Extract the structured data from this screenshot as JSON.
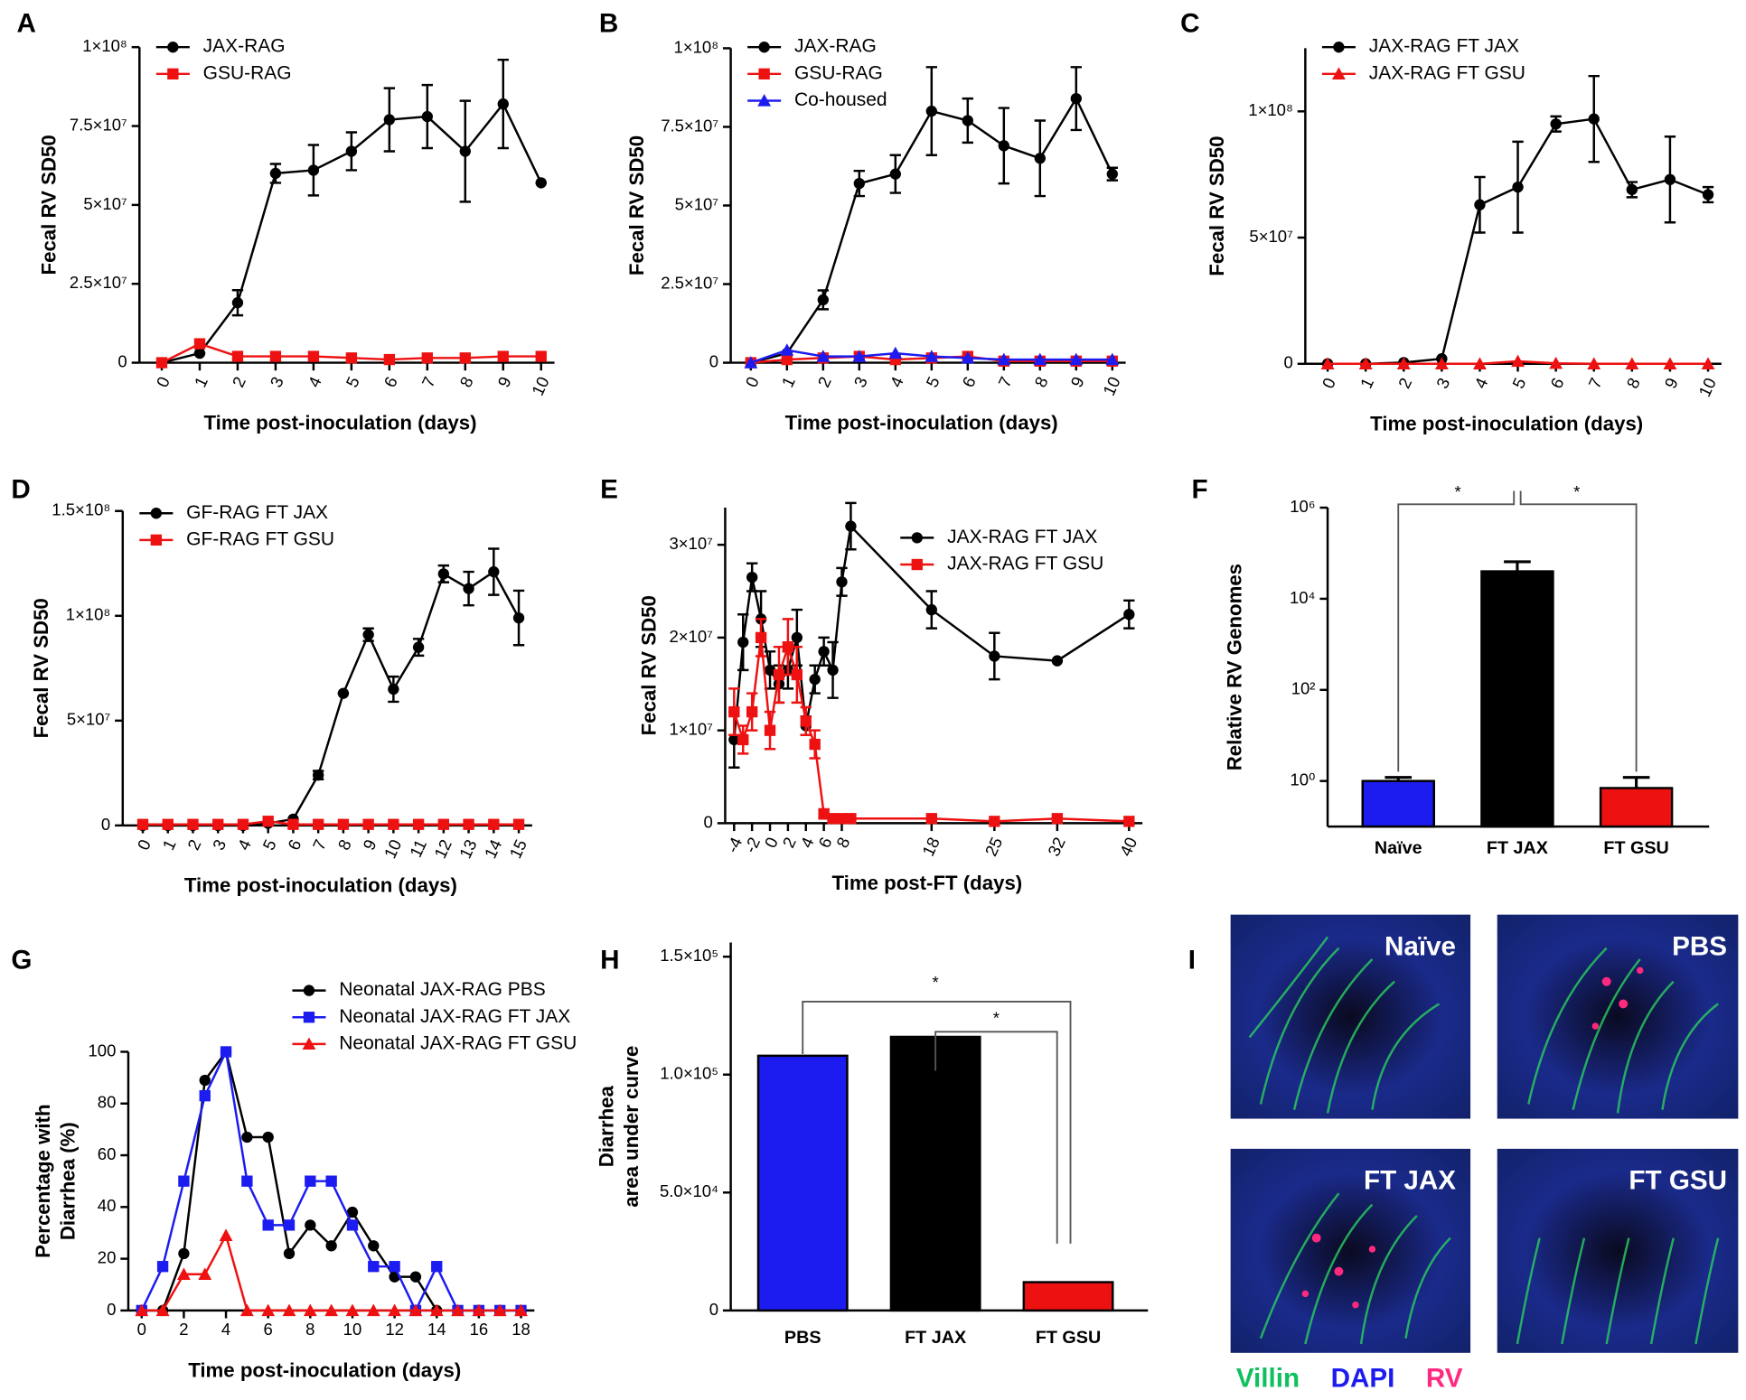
{
  "chart_data": [
    {
      "type": "line",
      "panel": "A",
      "ylabel": [
        "Fecal RV SD50"
      ],
      "xlabel": "Time post-inoculation (days)",
      "legend": "upper left",
      "x": [
        0,
        1,
        2,
        3,
        4,
        5,
        6,
        7,
        8,
        9,
        10
      ],
      "xlim": [
        0,
        10
      ],
      "xticks": [
        0,
        1,
        2,
        3,
        4,
        5,
        6,
        7,
        8,
        9,
        10
      ],
      "ylim": [
        0,
        100000000.0
      ],
      "yticks": [
        0,
        {
          "value": 25000000.0,
          "label": "2.5×10⁷"
        },
        {
          "value": 50000000.0,
          "label": "5×10⁷"
        },
        {
          "value": 75000000.0,
          "label": "7.5×10⁷"
        },
        {
          "value": 100000000.0,
          "label": "1×10⁸"
        }
      ],
      "series": [
        {
          "name": "JAX-RAG",
          "color": "#000000",
          "marker": "circle",
          "values": [
            0,
            3000000.0,
            19000000.0,
            60000000.0,
            61000000.0,
            67000000.0,
            77000000.0,
            78000000.0,
            67000000.0,
            82000000.0,
            57000000.0
          ],
          "errors": [
            0,
            0,
            4000000.0,
            3000000.0,
            8000000.0,
            6000000.0,
            10000000.0,
            10000000.0,
            16000000.0,
            14000000.0,
            0
          ]
        },
        {
          "name": "GSU-RAG",
          "color": "#ee1111",
          "marker": "square",
          "values": [
            0,
            6000000.0,
            2000000.0,
            2000000.0,
            2000000.0,
            1500000.0,
            1000000.0,
            1500000.0,
            1500000.0,
            2000000.0,
            2000000.0
          ]
        }
      ]
    },
    {
      "type": "line",
      "panel": "B",
      "ylabel": [
        "Fecal RV SD50"
      ],
      "xlabel": "Time post-inoculation (days)",
      "legend": "upper left",
      "x": [
        0,
        1,
        2,
        3,
        4,
        5,
        6,
        7,
        8,
        9,
        10
      ],
      "xlim": [
        0,
        10
      ],
      "xticks": [
        0,
        1,
        2,
        3,
        4,
        5,
        6,
        7,
        8,
        9,
        10
      ],
      "ylim": [
        0,
        100000000.0
      ],
      "yticks": [
        0,
        {
          "value": 25000000.0,
          "label": "2.5×10⁷"
        },
        {
          "value": 50000000.0,
          "label": "5×10⁷"
        },
        {
          "value": 75000000.0,
          "label": "7.5×10⁷"
        },
        {
          "value": 100000000.0,
          "label": "1×10⁸"
        }
      ],
      "series": [
        {
          "name": "JAX-RAG",
          "color": "#000000",
          "marker": "circle",
          "values": [
            0,
            3000000.0,
            20000000.0,
            57000000.0,
            60000000.0,
            80000000.0,
            77000000.0,
            69000000.0,
            65000000.0,
            84000000.0,
            60000000.0
          ],
          "errors": [
            0,
            0,
            3000000.0,
            4000000.0,
            6000000.0,
            14000000.0,
            7000000.0,
            12000000.0,
            12000000.0,
            10000000.0,
            2000000.0
          ]
        },
        {
          "name": "GSU-RAG",
          "color": "#ee1111",
          "marker": "square",
          "values": [
            0,
            1000000.0,
            1500000.0,
            2000000.0,
            1000000.0,
            1500000.0,
            2000000.0,
            500000.0,
            500000.0,
            500000.0,
            500000.0
          ]
        },
        {
          "name": "Co-housed",
          "color": "#1c1cf0",
          "marker": "triangle",
          "values": [
            0,
            4000000.0,
            2000000.0,
            2000000.0,
            3000000.0,
            2000000.0,
            1500000.0,
            1000000.0,
            1000000.0,
            1000000.0,
            1000000.0
          ]
        }
      ]
    },
    {
      "type": "line",
      "panel": "C",
      "ylabel": [
        "Fecal RV SD50"
      ],
      "xlabel": "Time post-inoculation (days)",
      "legend": "upper left",
      "x": [
        0,
        1,
        2,
        3,
        4,
        5,
        6,
        7,
        8,
        9,
        10
      ],
      "xlim": [
        0,
        10
      ],
      "xticks": [
        0,
        1,
        2,
        3,
        4,
        5,
        6,
        7,
        8,
        9,
        10
      ],
      "ylim": [
        0,
        125000000.0
      ],
      "yticks": [
        0,
        {
          "value": 50000000.0,
          "label": "5×10⁷"
        },
        {
          "value": 100000000.0,
          "label": "1×10⁸"
        }
      ],
      "series": [
        {
          "name": "JAX-RAG FT JAX",
          "color": "#000000",
          "marker": "circle",
          "values": [
            0,
            0,
            500000.0,
            2000000.0,
            63000000.0,
            70000000.0,
            95000000.0,
            97000000.0,
            69000000.0,
            73000000.0,
            67000000.0
          ],
          "errors": [
            0,
            0,
            0,
            0,
            11000000.0,
            18000000.0,
            3000000.0,
            17000000.0,
            3000000.0,
            17000000.0,
            3000000.0
          ]
        },
        {
          "name": "JAX-RAG FT GSU",
          "color": "#ee1111",
          "marker": "triangle",
          "values": [
            0,
            0,
            0,
            0,
            0,
            1000000.0,
            200000.0,
            0,
            0,
            0,
            0
          ]
        }
      ]
    },
    {
      "type": "line",
      "panel": "D",
      "ylabel": [
        "Fecal RV SD50"
      ],
      "xlabel": "Time post-inoculation (days)",
      "legend": "upper left",
      "x": [
        0,
        1,
        2,
        3,
        4,
        5,
        6,
        7,
        8,
        9,
        10,
        11,
        12,
        13,
        14,
        15
      ],
      "xlim": [
        0,
        15
      ],
      "xticks": [
        0,
        1,
        2,
        3,
        4,
        5,
        6,
        7,
        8,
        9,
        10,
        11,
        12,
        13,
        14,
        15
      ],
      "ylim": [
        0,
        150000000.0
      ],
      "yticks": [
        0,
        {
          "value": 50000000.0,
          "label": "5×10⁷"
        },
        {
          "value": 100000000.0,
          "label": "1×10⁸"
        },
        {
          "value": 150000000.0,
          "label": "1.5×10⁸"
        }
      ],
      "series": [
        {
          "name": "GF-RAG FT JAX",
          "color": "#000000",
          "marker": "circle",
          "values": [
            0,
            0,
            0,
            0,
            0,
            1000000.0,
            3000000.0,
            24000000.0,
            63000000.0,
            91000000.0,
            65000000.0,
            85000000.0,
            120000000.0,
            113000000.0,
            121000000.0,
            99000000.0
          ],
          "errors": [
            0,
            0,
            0,
            0,
            0,
            0,
            0,
            2000000.0,
            0,
            3000000.0,
            6000000.0,
            4000000.0,
            4000000.0,
            8000000.0,
            11000000.0,
            13000000.0
          ]
        },
        {
          "name": "GF-RAG FT GSU",
          "color": "#ee1111",
          "marker": "square",
          "values": [
            500000.0,
            500000.0,
            500000.0,
            500000.0,
            500000.0,
            2000000.0,
            500000.0,
            500000.0,
            500000.0,
            500000.0,
            500000.0,
            500000.0,
            500000.0,
            500000.0,
            500000.0,
            500000.0
          ]
        }
      ]
    },
    {
      "type": "line",
      "panel": "E",
      "ylabel": [
        "Fecal RV SD50"
      ],
      "xlabel": "Time post-FT (days)",
      "legend": "upper right",
      "x": [
        -4,
        -3,
        -2,
        -1,
        0,
        1,
        2,
        3,
        4,
        5,
        6,
        7,
        8,
        9,
        18,
        25,
        32,
        40
      ],
      "xlim": [
        -4,
        40
      ],
      "xticks": [
        -4,
        -2,
        0,
        2,
        4,
        6,
        8,
        18,
        25,
        32,
        40
      ],
      "ylim": [
        0,
        34000000.0
      ],
      "yticks": [
        0,
        {
          "value": 10000000.0,
          "label": "1×10⁷"
        },
        {
          "value": 20000000.0,
          "label": "2×10⁷"
        },
        {
          "value": 30000000.0,
          "label": "3×10⁷"
        }
      ],
      "series": [
        {
          "name": "JAX-RAG FT JAX",
          "color": "#000000",
          "marker": "circle",
          "values": [
            9000000.0,
            19500000.0,
            26500000.0,
            22000000.0,
            16500000.0,
            15000000.0,
            16500000.0,
            20000000.0,
            10500000.0,
            15500000.0,
            18500000.0,
            16500000.0,
            26000000.0,
            32000000.0,
            23000000.0,
            18000000.0,
            17500000.0,
            22500000.0
          ],
          "errors": [
            3000000.0,
            3000000.0,
            1500000.0,
            3000000.0,
            2000000.0,
            2000000.0,
            2000000.0,
            3000000.0,
            1000000.0,
            1500000.0,
            1500000.0,
            3000000.0,
            1500000.0,
            2500000.0,
            2000000.0,
            2500000.0,
            0,
            1500000.0
          ]
        },
        {
          "name": "JAX-RAG FT GSU",
          "color": "#ee1111",
          "marker": "square",
          "values": [
            12000000.0,
            9000000.0,
            12000000.0,
            20000000.0,
            10000000.0,
            16000000.0,
            19000000.0,
            16000000.0,
            11000000.0,
            8500000.0,
            1000000.0,
            500000.0,
            500000.0,
            500000.0,
            500000.0,
            200000.0,
            500000.0,
            200000.0
          ],
          "errors": [
            2500000.0,
            1500000.0,
            2000000.0,
            2000000.0,
            2000000.0,
            3000000.0,
            3000000.0,
            3000000.0,
            1500000.0,
            1500000.0,
            500000.0,
            0,
            0,
            0,
            0,
            0,
            0,
            0
          ]
        }
      ]
    },
    {
      "type": "bar",
      "panel": "F",
      "ylabel": [
        "Relative RV Genomes"
      ],
      "log": true,
      "annotations": [
        "*",
        "*"
      ],
      "categories": [
        "Naïve",
        "FT JAX",
        "FT GSU"
      ],
      "values": [
        1,
        40000,
        0.7
      ],
      "errors": [
        0.2,
        25000,
        0.5
      ],
      "colors": [
        "#1c1cf0",
        "#000000",
        "#ee1111"
      ],
      "ylim": [
        0.1,
        1000000
      ],
      "yticks": [
        {
          "value": 1,
          "label": "10⁰"
        },
        {
          "value": 100,
          "label": "10²"
        },
        {
          "value": 10000,
          "label": "10⁴"
        },
        {
          "value": 1000000,
          "label": "10⁶"
        }
      ]
    },
    {
      "type": "line",
      "panel": "G",
      "ylabel": [
        "Percentage with",
        "Diarrhea (%)"
      ],
      "xlabel": "Time post-inoculation (days)",
      "legend": "upper right",
      "x": [
        0,
        1,
        2,
        3,
        4,
        5,
        6,
        7,
        8,
        9,
        10,
        11,
        12,
        13,
        14,
        15,
        16,
        17,
        18
      ],
      "xlim": [
        0,
        18
      ],
      "xticks": [
        0,
        2,
        4,
        6,
        8,
        10,
        12,
        14,
        16,
        18
      ],
      "ylim": [
        0,
        100
      ],
      "yticks": [
        0,
        20,
        40,
        60,
        80,
        100
      ],
      "series": [
        {
          "name": "Neonatal JAX-RAG PBS",
          "color": "#000000",
          "marker": "circle",
          "values": [
            0,
            0,
            22,
            89,
            100,
            67,
            67,
            22,
            33,
            25,
            38,
            25,
            13,
            13,
            0,
            null,
            null,
            null,
            null
          ]
        },
        {
          "name": "Neonatal JAX-RAG FT JAX",
          "color": "#1c1cf0",
          "marker": "square",
          "values": [
            0,
            17,
            50,
            83,
            100,
            50,
            33,
            33,
            50,
            50,
            33,
            17,
            17,
            0,
            17,
            0,
            0,
            0,
            0
          ]
        },
        {
          "name": "Neonatal JAX-RAG FT GSU",
          "color": "#ee1111",
          "marker": "triangle",
          "values": [
            0,
            0,
            14,
            14,
            29,
            0,
            0,
            0,
            0,
            0,
            0,
            0,
            0,
            0,
            0,
            0,
            0,
            0,
            0
          ]
        }
      ]
    },
    {
      "type": "bar",
      "panel": "H",
      "ylabel": [
        "Diarrhea",
        "area under curve"
      ],
      "annotations": [
        "*",
        "*"
      ],
      "categories": [
        "PBS",
        "FT JAX",
        "FT GSU"
      ],
      "values": [
        108000,
        116000,
        12000
      ],
      "colors": [
        "#1c1cf0",
        "#000000",
        "#ee1111"
      ],
      "ylim": [
        0,
        156000
      ],
      "yticks": [
        0,
        {
          "value": 50000,
          "label": "5.0×10⁴"
        },
        {
          "value": 100000,
          "label": "1.0×10⁵"
        },
        {
          "value": 150000,
          "label": "1.5×10⁵"
        }
      ]
    }
  ],
  "image_panel": {
    "panel": "I",
    "images": [
      "Naïve",
      "PBS",
      "FT JAX",
      "FT GSU"
    ],
    "stains": [
      {
        "name": "Villin",
        "color": "#10c060"
      },
      {
        "name": "DAPI",
        "color": "#1c1cf0"
      },
      {
        "name": "RV",
        "color": "#ff2a7f"
      }
    ]
  }
}
